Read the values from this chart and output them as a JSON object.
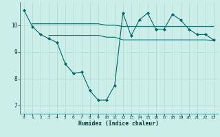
{
  "xlabel": "Humidex (Indice chaleur)",
  "bg_color": "#cceee8",
  "line_color": "#006666",
  "grid_color": "#aaddcc",
  "xlim": [
    -0.5,
    23.5
  ],
  "ylim": [
    6.7,
    10.85
  ],
  "yticks": [
    7,
    8,
    9,
    10
  ],
  "xticks": [
    0,
    1,
    2,
    3,
    4,
    5,
    6,
    7,
    8,
    9,
    10,
    11,
    12,
    13,
    14,
    15,
    16,
    17,
    18,
    19,
    20,
    21,
    22,
    23
  ],
  "line1_x": [
    0,
    1,
    2,
    3,
    4,
    5,
    6,
    7,
    8,
    9,
    10,
    11,
    12,
    13,
    14,
    15,
    16,
    17,
    18,
    19,
    20,
    21,
    22,
    23
  ],
  "line1_y": [
    10.55,
    9.95,
    9.65,
    9.5,
    9.35,
    8.55,
    8.2,
    8.25,
    7.55,
    7.2,
    7.2,
    7.75,
    10.45,
    9.6,
    10.2,
    10.45,
    9.85,
    9.85,
    10.4,
    10.2,
    9.85,
    9.65,
    9.65,
    9.45
  ],
  "line2_x": [
    1,
    2,
    3,
    4,
    5,
    6,
    7,
    8,
    9,
    10,
    11,
    12,
    13,
    14,
    15,
    16,
    17,
    18,
    19,
    20,
    21,
    22,
    23
  ],
  "line2_y": [
    10.05,
    10.05,
    10.05,
    10.05,
    10.05,
    10.05,
    10.05,
    10.05,
    10.05,
    10.0,
    10.0,
    9.95,
    9.95,
    9.95,
    9.95,
    9.95,
    9.95,
    9.95,
    9.95,
    9.95,
    9.95,
    9.95,
    9.95
  ],
  "line3_x": [
    3,
    4,
    5,
    6,
    7,
    8,
    9,
    10,
    11,
    12,
    13,
    14,
    15,
    16,
    17,
    18,
    19,
    20,
    21,
    22,
    23
  ],
  "line3_y": [
    9.62,
    9.62,
    9.62,
    9.62,
    9.62,
    9.62,
    9.62,
    9.55,
    9.55,
    9.45,
    9.45,
    9.45,
    9.45,
    9.45,
    9.45,
    9.45,
    9.45,
    9.45,
    9.45,
    9.45,
    9.42
  ]
}
